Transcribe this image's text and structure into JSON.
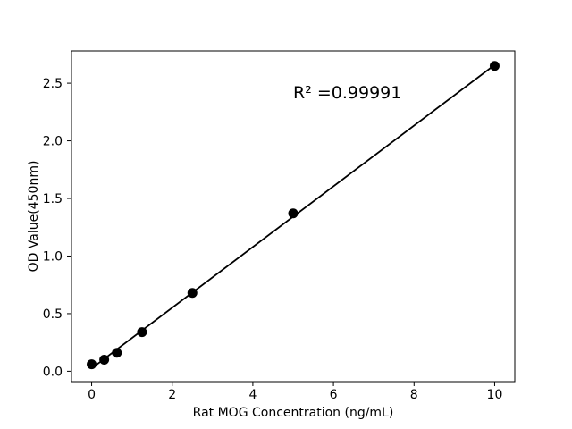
{
  "window": {
    "background": "#ffffff"
  },
  "chart_data": {
    "type": "scatter",
    "title": "",
    "xlabel": "Rat MOG Concentration (ng/mL)",
    "ylabel": "OD Value(450nm)",
    "points": {
      "x": [
        0,
        0.3125,
        0.625,
        1.25,
        2.5,
        5,
        10
      ],
      "y": [
        0.06,
        0.1,
        0.16,
        0.34,
        0.68,
        1.37,
        2.65
      ]
    },
    "fit_line": {
      "slope": 0.2634,
      "intercept": 0.025,
      "x_start": 0,
      "x_end": 10
    },
    "annotation": {
      "text": "R² =0.99991",
      "x": 5,
      "y": 2.38
    },
    "xlim": [
      -0.5,
      10.5
    ],
    "ylim": [
      -0.09,
      2.78
    ],
    "xticks": [
      {
        "value": 0,
        "label": "0"
      },
      {
        "value": 2,
        "label": "2"
      },
      {
        "value": 4,
        "label": "4"
      },
      {
        "value": 6,
        "label": "6"
      },
      {
        "value": 8,
        "label": "8"
      },
      {
        "value": 10,
        "label": "10"
      }
    ],
    "yticks": [
      {
        "value": 0.0,
        "label": "0.0"
      },
      {
        "value": 0.5,
        "label": "0.5"
      },
      {
        "value": 1.0,
        "label": "1.0"
      },
      {
        "value": 1.5,
        "label": "1.5"
      },
      {
        "value": 2.0,
        "label": "2.0"
      },
      {
        "value": 2.5,
        "label": "2.5"
      }
    ],
    "grid": false,
    "legend": null,
    "marker": {
      "shape": "circle",
      "radius_px": 5.5
    },
    "colors": {
      "marker": "#000000",
      "line": "#000000",
      "text": "#000000",
      "frame": "#000000"
    }
  }
}
